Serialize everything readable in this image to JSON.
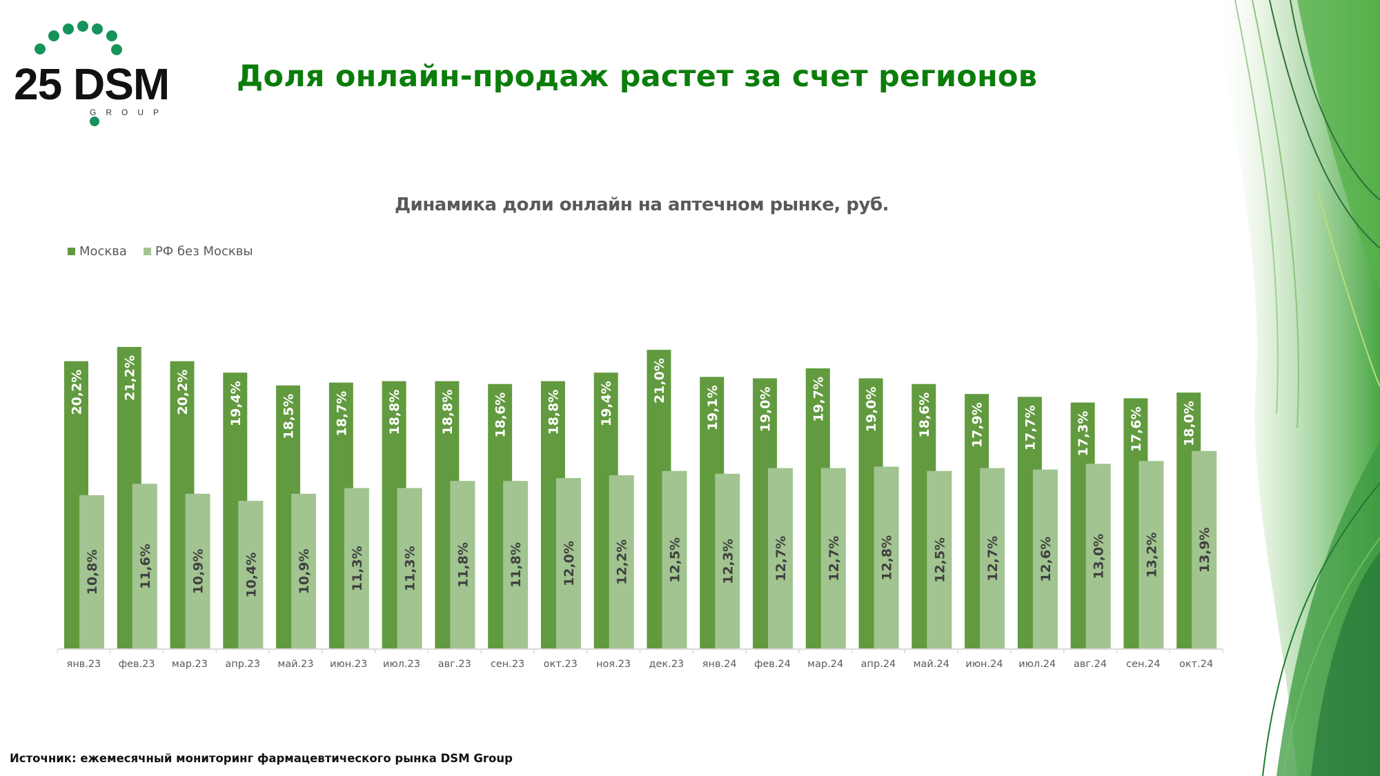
{
  "logo": {
    "text": "25 DSM",
    "subtext": "GROUP"
  },
  "header": {
    "title": "Доля онлайн-продаж растет за счет регионов"
  },
  "footer": {
    "source": "Источник: ежемесячный мониторинг фармацевтического рынка DSM Group"
  },
  "colors": {
    "title": "#0a7d0a",
    "moscow": "#629a3f",
    "regions": "#a1c490",
    "axis": "#d9d9d9",
    "logo_dots": "#16935a"
  },
  "chart_data": {
    "type": "bar",
    "title": "Динамика доли онлайн на аптечном рынке, руб.",
    "xlabel": "",
    "ylabel": "",
    "ylim": [
      0,
      21.2
    ],
    "grid": false,
    "legend_position": "top-left",
    "categories": [
      "янв.23",
      "фев.23",
      "мар.23",
      "апр.23",
      "май.23",
      "июн.23",
      "июл.23",
      "авг.23",
      "сен.23",
      "окт.23",
      "ноя.23",
      "дек.23",
      "янв.24",
      "фев.24",
      "мар.24",
      "апр.24",
      "май.24",
      "июн.24",
      "июл.24",
      "авг.24",
      "сен.24",
      "окт.24"
    ],
    "series": [
      {
        "name": "Москва",
        "color": "#629a3f",
        "values": [
          20.2,
          21.2,
          20.2,
          19.4,
          18.5,
          18.7,
          18.8,
          18.8,
          18.6,
          18.8,
          19.4,
          21.0,
          19.1,
          19.0,
          19.7,
          19.0,
          18.6,
          17.9,
          17.7,
          17.3,
          17.6,
          18.0
        ],
        "labels": [
          "20,2%",
          "21,2%",
          "20,2%",
          "19,4%",
          "18,5%",
          "18,7%",
          "18,8%",
          "18,8%",
          "18,6%",
          "18,8%",
          "19,4%",
          "21,0%",
          "19,1%",
          "19,0%",
          "19,7%",
          "19,0%",
          "18,6%",
          "17,9%",
          "17,7%",
          "17,3%",
          "17,6%",
          "18,0%"
        ]
      },
      {
        "name": "РФ без Москвы",
        "color": "#a1c490",
        "values": [
          10.8,
          11.6,
          10.9,
          10.4,
          10.9,
          11.3,
          11.3,
          11.8,
          11.8,
          12.0,
          12.2,
          12.5,
          12.3,
          12.7,
          12.7,
          12.8,
          12.5,
          12.7,
          12.6,
          13.0,
          13.2,
          13.9
        ],
        "labels": [
          "10,8%",
          "11,6%",
          "10,9%",
          "10,4%",
          "10,9%",
          "11,3%",
          "11,3%",
          "11,8%",
          "11,8%",
          "12,0%",
          "12,2%",
          "12,5%",
          "12,3%",
          "12,7%",
          "12,7%",
          "12,8%",
          "12,5%",
          "12,7%",
          "12,6%",
          "13,0%",
          "13,2%",
          "13,9%"
        ]
      }
    ]
  }
}
